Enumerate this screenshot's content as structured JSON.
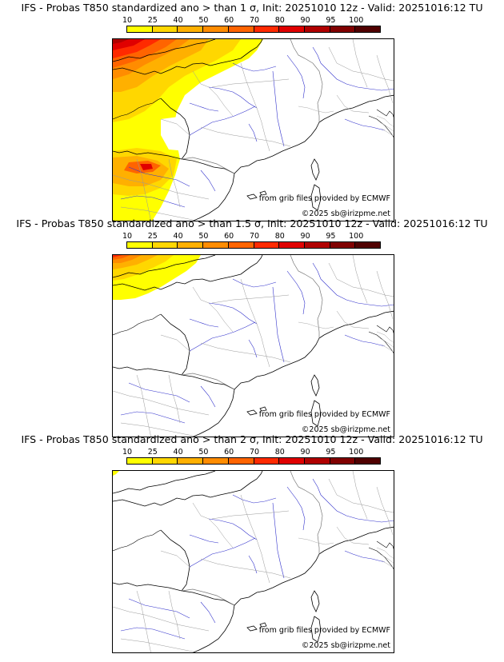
{
  "colors": {
    "scale": [
      "#ffff00",
      "#ffd700",
      "#ffb000",
      "#ff8c00",
      "#ff6400",
      "#ff2a00",
      "#e00000",
      "#b00000",
      "#800000",
      "#500000"
    ]
  },
  "colorbar": {
    "labels": [
      "10",
      "25",
      "40",
      "50",
      "60",
      "70",
      "80",
      "90",
      "95",
      "100"
    ]
  },
  "panels": [
    {
      "title": "IFS - Probas T850  standardized ano > than 1 σ, Init: 20251010 12z - Valid: 20251016:12 TU",
      "credit_grib": "from grib files provided by ECMWF",
      "credit_copy": "©2025 sb@irizpme.net"
    },
    {
      "title": "IFS - Probas T850  standardized ano > than 1.5 σ, Init: 20251010 12z - Valid: 20251016:12 TU",
      "credit_grib": "from grib files provided by ECMWF",
      "credit_copy": "©2025 sb@irizpme.net"
    },
    {
      "title": "IFS - Probas T850  standardized ano > than 2 σ, Init: 20251010 12z - Valid: 20251016:12 TU",
      "credit_grib": "from grib files provided by ECMWF",
      "credit_copy": "©2025 sb@irizpme.net"
    }
  ]
}
